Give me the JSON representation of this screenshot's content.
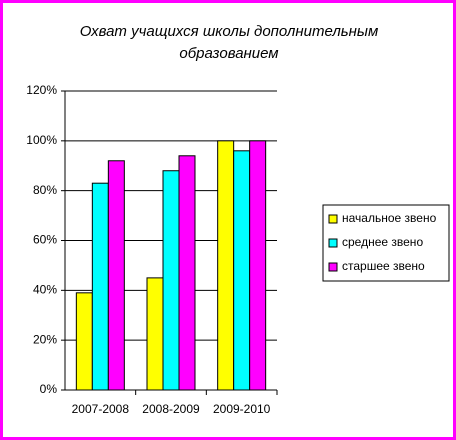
{
  "chart_data": {
    "type": "bar",
    "title": "Охват учащихся школы дополнительным образованием",
    "categories": [
      "2007-2008",
      "2008-2009",
      "2009-2010"
    ],
    "series": [
      {
        "name": "начальное звено",
        "color": "#ffff00",
        "values": [
          39,
          45,
          100
        ]
      },
      {
        "name": "среднее звено",
        "color": "#00ffff",
        "values": [
          83,
          88,
          96
        ]
      },
      {
        "name": "старшее звено",
        "color": "#ff00ff",
        "values": [
          92,
          94,
          100
        ]
      }
    ],
    "ylim": [
      0,
      120
    ],
    "yticks": [
      {
        "value": 0,
        "label": "0%"
      },
      {
        "value": 20,
        "label": "20%"
      },
      {
        "value": 40,
        "label": "40%"
      },
      {
        "value": 60,
        "label": "60%"
      },
      {
        "value": 80,
        "label": "80%"
      },
      {
        "value": 100,
        "label": "100%"
      },
      {
        "value": 120,
        "label": "120%"
      }
    ],
    "grid": true,
    "legend": "right"
  }
}
